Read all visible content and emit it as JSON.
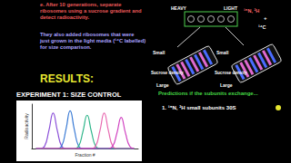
{
  "step": [
    "e. After 10 generations, separate",
    "ribosomes using a sucrose gradient and",
    "detect radioactivity."
  ],
  "note": [
    "They also added ribosomes that were",
    "just grown in the light media (¹⁴C labelled)",
    "for size comparison."
  ],
  "results": "RESULTS:",
  "experiment": "EXPERIMENT 1: SIZE CONTROL",
  "diagram": {
    "heavy": "HEAVY",
    "light": "LIGHT",
    "isotopes": "¹⁵N, ²H",
    "plus": "+",
    "light_isotope": "¹⁴C",
    "gradient_label": "Sucrose density",
    "small": "Small",
    "large": "Large"
  },
  "prediction": "Predictions if the subunits exchange...",
  "prediction_1": "1. ¹⁵N, ²H small subunits 30S",
  "chart_data": {
    "type": "line",
    "x_label": "Fraction #",
    "y_label": "Radioactivity",
    "x": [
      1,
      2,
      3,
      4,
      5,
      6,
      7,
      8,
      9,
      10,
      11,
      12,
      13,
      14,
      15,
      16,
      17,
      18,
      19,
      20,
      21,
      22,
      23,
      24
    ],
    "xlim": [
      0,
      25
    ],
    "ylim": [
      0,
      100
    ],
    "grid": false,
    "tick_labels": false,
    "series": [
      {
        "color": "#8a4fd8",
        "values": [
          0,
          0,
          5,
          40,
          80,
          40,
          5,
          0,
          0,
          0,
          0,
          0,
          0,
          0,
          0,
          0,
          0,
          0,
          0,
          0,
          0,
          0,
          0,
          0
        ]
      },
      {
        "color": "#3a7bd5",
        "values": [
          0,
          0,
          0,
          0,
          0,
          0,
          5,
          42,
          85,
          42,
          5,
          0,
          0,
          0,
          0,
          0,
          0,
          0,
          0,
          0,
          0,
          0,
          0,
          0
        ]
      },
      {
        "color": "#2fb58a",
        "values": [
          0,
          0,
          0,
          0,
          0,
          0,
          0,
          0,
          0,
          0,
          5,
          38,
          75,
          38,
          5,
          0,
          0,
          0,
          0,
          0,
          0,
          0,
          0,
          0
        ]
      },
      {
        "color": "#e86ab0",
        "values": [
          0,
          0,
          0,
          0,
          0,
          0,
          0,
          0,
          0,
          0,
          0,
          0,
          0,
          0,
          5,
          40,
          80,
          40,
          5,
          0,
          0,
          0,
          0,
          0
        ]
      },
      {
        "color": "#d040c0",
        "values": [
          0,
          0,
          0,
          0,
          0,
          0,
          0,
          0,
          0,
          0,
          0,
          0,
          0,
          0,
          0,
          0,
          0,
          0,
          5,
          35,
          70,
          35,
          5,
          0
        ]
      }
    ]
  }
}
